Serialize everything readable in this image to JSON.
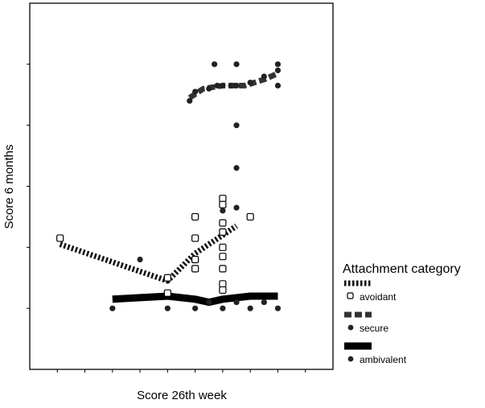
{
  "chart_data": {
    "type": "scatter",
    "title": "",
    "xlabel": "Score 26th week",
    "ylabel": "Score 6 months",
    "xlim": [
      0,
      11
    ],
    "ylim": [
      0,
      12
    ],
    "x_ticks": [
      1,
      2,
      3,
      4,
      5,
      6,
      7,
      8,
      9,
      10
    ],
    "y_ticks": [
      2,
      4,
      6,
      8,
      10
    ],
    "grid": false,
    "legend": {
      "title": "Attachment category",
      "placement": "right"
    },
    "series": [
      {
        "name": "avoidant",
        "marker": "open-square",
        "line_style": "dotted-thick",
        "points": [
          [
            1.1,
            4.3
          ],
          [
            5.0,
            3.0
          ],
          [
            5.0,
            2.5
          ],
          [
            6.0,
            5.0
          ],
          [
            6.0,
            4.3
          ],
          [
            6.0,
            3.6
          ],
          [
            6.0,
            3.3
          ],
          [
            7.0,
            5.6
          ],
          [
            7.0,
            5.4
          ],
          [
            7.0,
            4.8
          ],
          [
            7.0,
            4.5
          ],
          [
            7.0,
            4.0
          ],
          [
            7.0,
            3.7
          ],
          [
            7.0,
            3.3
          ],
          [
            7.0,
            2.8
          ],
          [
            7.0,
            2.6
          ],
          [
            8.0,
            5.0
          ]
        ],
        "fit_line": [
          [
            1.1,
            4.1
          ],
          [
            5.0,
            2.9
          ],
          [
            6.0,
            3.8
          ],
          [
            7.0,
            4.4
          ],
          [
            7.5,
            4.7
          ]
        ]
      },
      {
        "name": "secure",
        "marker": "filled-circle",
        "line_style": "dashed-thick",
        "points": [
          [
            5.8,
            8.8
          ],
          [
            6.0,
            9.1
          ],
          [
            6.5,
            9.2
          ],
          [
            6.7,
            10.0
          ],
          [
            6.8,
            9.3
          ],
          [
            7.0,
            9.3
          ],
          [
            7.3,
            9.3
          ],
          [
            7.5,
            10.0
          ],
          [
            7.5,
            9.3
          ],
          [
            8.0,
            9.4
          ],
          [
            8.5,
            9.6
          ],
          [
            9.0,
            9.8
          ],
          [
            9.0,
            10.0
          ],
          [
            9.0,
            9.3
          ]
        ],
        "fit_line": [
          [
            5.8,
            8.9
          ],
          [
            6.3,
            9.2
          ],
          [
            7.0,
            9.3
          ],
          [
            7.8,
            9.3
          ],
          [
            8.5,
            9.5
          ],
          [
            9.0,
            9.7
          ]
        ]
      },
      {
        "name": "ambivalent",
        "marker": "filled-circle",
        "line_style": "solid-thick",
        "points": [
          [
            3.0,
            2.0
          ],
          [
            4.0,
            3.6
          ],
          [
            5.0,
            2.0
          ],
          [
            6.0,
            2.0
          ],
          [
            6.5,
            2.2
          ],
          [
            7.0,
            2.0
          ],
          [
            7.0,
            5.2
          ],
          [
            7.5,
            2.2
          ],
          [
            7.5,
            5.3
          ],
          [
            7.5,
            6.6
          ],
          [
            7.5,
            8.0
          ],
          [
            8.0,
            2.0
          ],
          [
            8.5,
            2.2
          ],
          [
            9.0,
            2.0
          ]
        ],
        "fit_line": [
          [
            3.0,
            2.3
          ],
          [
            5.0,
            2.4
          ],
          [
            6.0,
            2.3
          ],
          [
            6.5,
            2.2
          ],
          [
            7.0,
            2.3
          ],
          [
            8.0,
            2.4
          ],
          [
            9.0,
            2.4
          ]
        ]
      }
    ]
  }
}
